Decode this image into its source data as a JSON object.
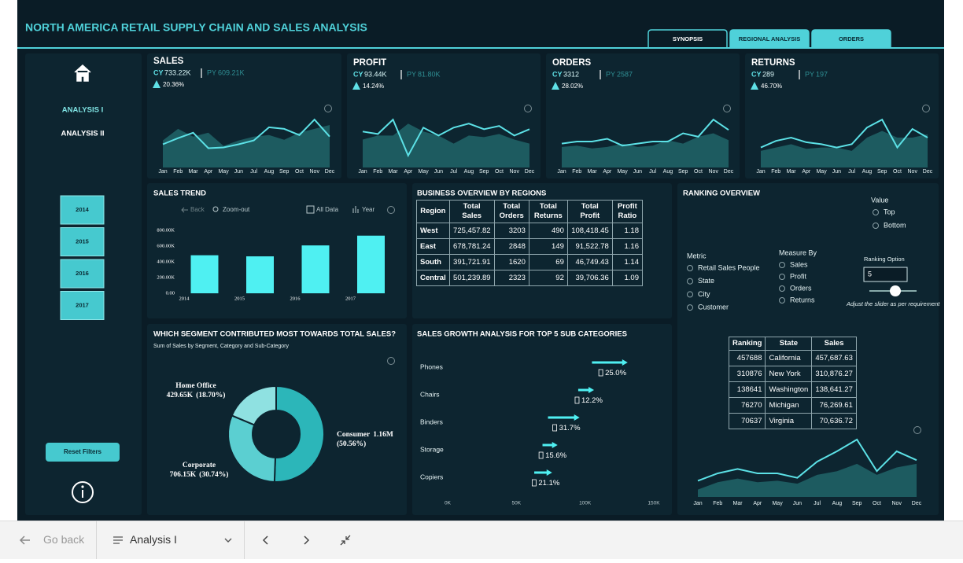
{
  "header": {
    "title": "NORTH AMERICA RETAIL SUPPLY CHAIN AND SALES ANALYSIS",
    "tabs": [
      "SYNOPSIS",
      "REGIONAL ANALYSIS",
      "ORDERS"
    ]
  },
  "sidebar": {
    "nav": [
      "ANALYSIS I",
      "ANALYSIS II"
    ],
    "years": [
      "2014",
      "2015",
      "2016",
      "2017"
    ],
    "reset": "Reset Filters"
  },
  "chart_data": [
    {
      "type": "sparkline",
      "title": "SALES",
      "cy_label": "CY",
      "cy": "733.22K",
      "py_label": "PY",
      "py": "609.21K",
      "change": "20.36%",
      "categories": [
        "Jan",
        "Feb",
        "Mar",
        "Apr",
        "May",
        "Jun",
        "Jul",
        "Aug",
        "Sep",
        "Oct",
        "Nov",
        "Dec"
      ],
      "series": [
        {
          "style": "area",
          "color": "#1d5b60",
          "values": [
            35,
            50,
            40,
            45,
            28,
            35,
            40,
            42,
            36,
            45,
            50,
            55
          ]
        },
        {
          "style": "line",
          "color": "#5ce1e6",
          "values": [
            30,
            38,
            45,
            25,
            26,
            30,
            35,
            52,
            50,
            42,
            62,
            40
          ]
        }
      ]
    },
    {
      "type": "sparkline",
      "title": "PROFIT",
      "cy_label": "CY",
      "cy": "93.44K",
      "py_label": "PY",
      "py": "81.80K",
      "change": "14.24%",
      "categories": [
        "Jan",
        "Feb",
        "Mar",
        "Apr",
        "May",
        "Jun",
        "Jul",
        "Aug",
        "Sep",
        "Oct",
        "Nov",
        "Dec"
      ],
      "series": [
        {
          "style": "area",
          "color": "#1d5b60",
          "values": [
            35,
            40,
            40,
            55,
            45,
            40,
            30,
            40,
            38,
            42,
            35,
            30
          ]
        },
        {
          "style": "line",
          "color": "#5ce1e6",
          "values": [
            45,
            42,
            60,
            15,
            50,
            40,
            50,
            55,
            48,
            52,
            40,
            48
          ]
        }
      ]
    },
    {
      "type": "sparkline",
      "title": "ORDERS",
      "cy_label": "CY",
      "cy": "3312",
      "py_label": "PY",
      "py": "2587",
      "change": "28.02%",
      "categories": [
        "Jan",
        "Feb",
        "Mar",
        "Apr",
        "May",
        "Jun",
        "Jul",
        "Aug",
        "Sep",
        "Oct",
        "Nov",
        "Dec"
      ],
      "series": [
        {
          "style": "area",
          "color": "#1d5b60",
          "values": [
            30,
            32,
            28,
            30,
            35,
            30,
            32,
            40,
            35,
            45,
            50,
            40
          ]
        },
        {
          "style": "line",
          "color": "#5ce1e6",
          "values": [
            35,
            38,
            38,
            42,
            32,
            35,
            38,
            38,
            50,
            45,
            70,
            55
          ]
        }
      ]
    },
    {
      "type": "sparkline",
      "title": "RETURNS",
      "cy_label": "CY",
      "cy": "289",
      "py_label": "PY",
      "py": "197",
      "change": "46.70%",
      "categories": [
        "Jan",
        "Feb",
        "Mar",
        "Apr",
        "May",
        "Jun",
        "Jul",
        "Aug",
        "Sep",
        "Oct",
        "Nov",
        "Dec"
      ],
      "series": [
        {
          "style": "area",
          "color": "#1d5b60",
          "values": [
            25,
            30,
            35,
            28,
            30,
            30,
            25,
            45,
            55,
            45,
            45,
            50
          ]
        },
        {
          "style": "line",
          "color": "#5ce1e6",
          "values": [
            30,
            40,
            45,
            38,
            35,
            30,
            35,
            60,
            72,
            30,
            58,
            45
          ]
        }
      ]
    },
    {
      "type": "bar",
      "title": "SALES TREND",
      "toolbar": [
        "Back",
        "Zoom-out",
        "All Data",
        "Year"
      ],
      "categories": [
        "2014",
        "2015",
        "2016",
        "2017"
      ],
      "values": [
        484000,
        470000,
        609000,
        733000
      ],
      "color": "#4ff0f2",
      "ylim": [
        0,
        800000
      ],
      "yticks": [
        {
          "value": 0,
          "label": "0.00"
        },
        {
          "value": 200000,
          "label": "200.00K"
        },
        {
          "value": 400000,
          "label": "400.00K"
        },
        {
          "value": 600000,
          "label": "600.00K"
        },
        {
          "value": 800000,
          "label": "800.00K"
        }
      ]
    },
    {
      "type": "pie",
      "title": "WHICH SEGMENT CONTRIBUTED MOST TOWARDS TOTAL SALES?",
      "subtitle": "Sum of Sales by Segment, Category and Sub-Category",
      "categories": [
        "Consumer",
        "Corporate",
        "Home Office"
      ],
      "values": [
        50.56,
        30.74,
        18.7
      ],
      "amount_labels": [
        "1.16M",
        "706.15K",
        "429.65K"
      ],
      "value_labels": [
        "(50.56%)",
        "(30.74%)",
        "(18.70%)"
      ],
      "colors": [
        "#2cb6b9",
        "#5bcfd1",
        "#8fe1e1"
      ]
    },
    {
      "type": "arrow",
      "title": "SALES GROWTH ANALYSIS FOR TOP 5 SUB CATEGORIES",
      "categories": [
        "Phones",
        "Chairs",
        "Binders",
        "Storage",
        "Copiers"
      ],
      "start": [
        105000,
        95000,
        73000,
        69000,
        63000
      ],
      "end": [
        131000,
        106500,
        96000,
        80000,
        76000
      ],
      "values": [
        25.0,
        12.2,
        31.7,
        15.6,
        21.1
      ],
      "value_labels": [
        "25.0%",
        "12.2%",
        "31.7%",
        "15.6%",
        "21.1%"
      ],
      "color": "#4ff0f2",
      "xlim": [
        0,
        150000
      ],
      "xticks": [
        {
          "value": 0,
          "label": "0K"
        },
        {
          "value": 50000,
          "label": "50K"
        },
        {
          "value": 100000,
          "label": "100K"
        },
        {
          "value": 150000,
          "label": "150K"
        }
      ]
    },
    {
      "type": "sparkline",
      "categories": [
        "Jan",
        "Feb",
        "Mar",
        "Apr",
        "May",
        "Jun",
        "Jul",
        "Aug",
        "Sep",
        "Oct",
        "Nov",
        "Dec"
      ],
      "series": [
        {
          "style": "area",
          "color": "#1d5b60",
          "values": [
            10,
            20,
            25,
            20,
            22,
            18,
            30,
            35,
            45,
            30,
            40,
            45
          ]
        },
        {
          "style": "line",
          "color": "#5ce1e6",
          "values": [
            22,
            32,
            38,
            32,
            32,
            26,
            48,
            62,
            78,
            35,
            62,
            50
          ]
        }
      ]
    }
  ],
  "regions_table": {
    "title": "BUSINESS OVERVIEW BY REGIONS",
    "columns": [
      "Region",
      "Total Sales",
      "Total Orders",
      "Total Returns",
      "Total Profit",
      "Profit Ratio"
    ],
    "rows": [
      [
        "West",
        "725,457.82",
        "3203",
        "490",
        "108,418.45",
        "1.18"
      ],
      [
        "East",
        "678,781.24",
        "2848",
        "149",
        "91,522.78",
        "1.16"
      ],
      [
        "South",
        "391,721.91",
        "1620",
        "69",
        "46,749.43",
        "1.14"
      ],
      [
        "Central",
        "501,239.89",
        "2323",
        "92",
        "39,706.36",
        "1.09"
      ]
    ]
  },
  "ranking": {
    "title": "RANKING OVERVIEW",
    "value_heading": "Value",
    "value_options": [
      "Top",
      "Bottom"
    ],
    "metric_heading": "Metric",
    "metric_options": [
      "Retail Sales People",
      "State",
      "City",
      "Customer"
    ],
    "measure_heading": "Measure By",
    "measure_options": [
      "Sales",
      "Profit",
      "Orders",
      "Returns"
    ],
    "option_heading": "Ranking Option",
    "option_value": "5",
    "hint": "Adjust the slider as per requirement",
    "columns": [
      "Ranking",
      "State",
      "Sales"
    ],
    "rows": [
      [
        "457688",
        "California",
        "457,687.63"
      ],
      [
        "310876",
        "New York",
        "310,876.27"
      ],
      [
        "138641",
        "Washington",
        "138,641.27"
      ],
      [
        "76270",
        "Michigan",
        "76,269.61"
      ],
      [
        "70637",
        "Virginia",
        "70,636.72"
      ]
    ]
  },
  "bottom_bar": {
    "back": "Go back",
    "page": "Analysis I"
  }
}
